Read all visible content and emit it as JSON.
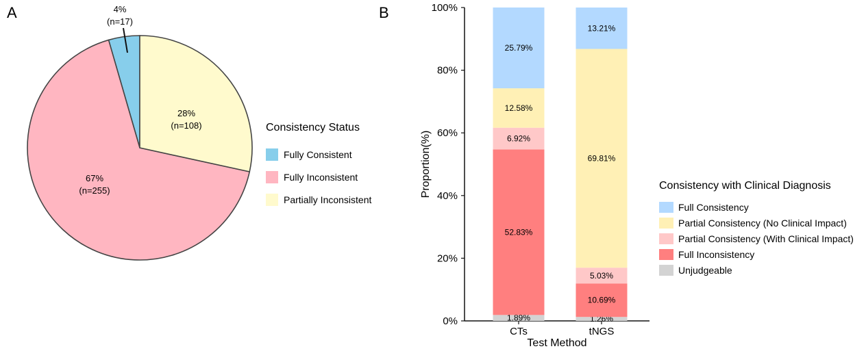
{
  "panels": {
    "a": "A",
    "b": "B"
  },
  "chart_data": [
    {
      "type": "pie",
      "panel": "A",
      "legend_title": "Consistency Status",
      "legend_position": "right",
      "slices": [
        {
          "name": "Fully Consistent",
          "percent": "4%",
          "n": "(n=17)",
          "count": 17,
          "color": "#87CEEB"
        },
        {
          "name": "Fully Inconsistent",
          "percent": "67%",
          "n": "(n=255)",
          "count": 255,
          "color": "#FFB6C1"
        },
        {
          "name": "Partially Inconsistent",
          "percent": "28%",
          "n": "(n=108)",
          "count": 108,
          "color": "#FFFACD"
        }
      ]
    },
    {
      "type": "bar",
      "stacked": true,
      "panel": "B",
      "xlabel": "Test Method",
      "ylabel": "Proportion(%)",
      "ylim": [
        0,
        100
      ],
      "yticks": [
        "0%",
        "20%",
        "40%",
        "60%",
        "80%",
        "100%"
      ],
      "categories": [
        "CTs",
        "tNGS"
      ],
      "legend_title": "Consistency with Clinical Diagnosis",
      "legend_position": "right",
      "series": [
        {
          "name": "Unjudgeable",
          "color": "#D3D3D3",
          "values": [
            1.89,
            1.26
          ],
          "labels": [
            "1.89%",
            "1.26%"
          ]
        },
        {
          "name": "Full Inconsistency",
          "color": "#FF7F7F",
          "values": [
            52.83,
            10.69
          ],
          "labels": [
            "52.83%",
            "10.69%"
          ]
        },
        {
          "name": "Partial Consistency (With Clinical Impact)",
          "color": "#FFC8C8",
          "values": [
            6.92,
            5.03
          ],
          "labels": [
            "6.92%",
            "5.03%"
          ]
        },
        {
          "name": "Partial Consistency (No Clinical Impact)",
          "color": "#FFF0B5",
          "values": [
            12.58,
            69.81
          ],
          "labels": [
            "12.58%",
            "69.81%"
          ]
        },
        {
          "name": "Full Consistency",
          "color": "#B3D9FF",
          "values": [
            25.79,
            13.21
          ],
          "labels": [
            "25.79%",
            "13.21%"
          ]
        }
      ],
      "legend_order": [
        "Full Consistency",
        "Partial Consistency (No Clinical Impact)",
        "Partial Consistency (With Clinical Impact)",
        "Full Inconsistency",
        "Unjudgeable"
      ]
    }
  ]
}
